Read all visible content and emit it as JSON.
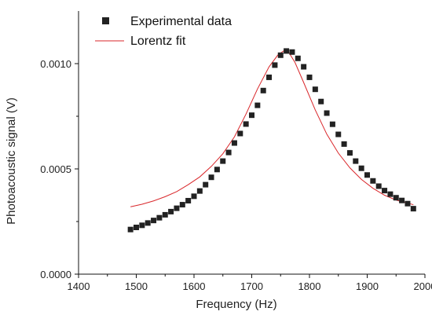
{
  "chart_data": {
    "type": "scatter",
    "xlabel": "Frequency (Hz)",
    "ylabel": "Photoacoustic signal (V)",
    "xlim": [
      1400,
      2000
    ],
    "ylim": [
      0.0,
      0.00125
    ],
    "x_ticks": [
      1400,
      1500,
      1600,
      1700,
      1800,
      1900,
      2000
    ],
    "y_ticks": [
      0.0,
      0.0005,
      0.001
    ],
    "x_tick_labels": [
      "1400",
      "1500",
      "1600",
      "1700",
      "1800",
      "1900",
      "2000"
    ],
    "y_tick_labels": [
      "0.0000",
      "0.0005",
      "0.0010"
    ],
    "grid": false,
    "legend_position": "top-left",
    "series": [
      {
        "name": "Experimental data",
        "style": "square-markers",
        "color": "#222222",
        "x": [
          1490,
          1500,
          1510,
          1520,
          1530,
          1540,
          1550,
          1560,
          1570,
          1580,
          1590,
          1600,
          1610,
          1620,
          1630,
          1640,
          1650,
          1660,
          1670,
          1680,
          1690,
          1700,
          1710,
          1720,
          1730,
          1740,
          1750,
          1760,
          1770,
          1780,
          1790,
          1800,
          1810,
          1820,
          1830,
          1840,
          1850,
          1860,
          1870,
          1880,
          1890,
          1900,
          1910,
          1920,
          1930,
          1940,
          1950,
          1960,
          1970,
          1980
        ],
        "y": [
          0.000212,
          0.000222,
          0.000232,
          0.000243,
          0.000255,
          0.000268,
          0.000282,
          0.000297,
          0.000313,
          0.00033,
          0.000349,
          0.00037,
          0.000395,
          0.000425,
          0.00046,
          0.000497,
          0.000537,
          0.000578,
          0.000623,
          0.000668,
          0.000713,
          0.000755,
          0.000802,
          0.000872,
          0.000935,
          0.000993,
          0.00104,
          0.00106,
          0.001055,
          0.001025,
          0.000985,
          0.000935,
          0.000878,
          0.00082,
          0.000765,
          0.000712,
          0.000664,
          0.000618,
          0.000576,
          0.000537,
          0.000503,
          0.000471,
          0.000443,
          0.000418,
          0.000397,
          0.00038,
          0.000363,
          0.00035,
          0.000335,
          0.000311
        ]
      },
      {
        "name": "Lorentz fit",
        "style": "line",
        "color": "#d9262a",
        "x": [
          1490,
          1510,
          1530,
          1550,
          1570,
          1590,
          1610,
          1630,
          1650,
          1670,
          1690,
          1710,
          1730,
          1745,
          1755,
          1765,
          1775,
          1790,
          1810,
          1830,
          1850,
          1870,
          1890,
          1910,
          1930,
          1950,
          1980
        ],
        "y": [
          0.00032,
          0.000332,
          0.000348,
          0.000368,
          0.000392,
          0.000425,
          0.000462,
          0.000512,
          0.000572,
          0.000652,
          0.00076,
          0.00088,
          0.000985,
          0.00104,
          0.00106,
          0.00105,
          0.001005,
          0.00091,
          0.00078,
          0.000665,
          0.000575,
          0.000505,
          0.00045,
          0.000408,
          0.000375,
          0.000352,
          0.00033
        ]
      }
    ]
  }
}
